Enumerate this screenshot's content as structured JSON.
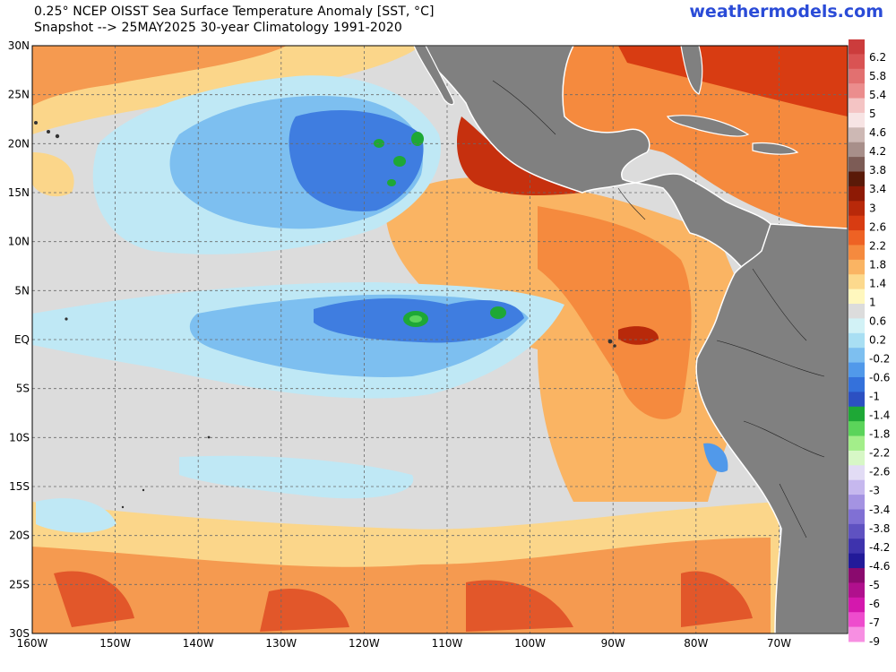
{
  "header": {
    "title_line1": "0.25° NCEP OISST Sea Surface Temperature Anomaly [SST, °C]",
    "title_line2": "Snapshot --> 25MAY2025   30-year Climatology 1991-2020",
    "brand": "weathermodels.com"
  },
  "map": {
    "region": "Eastern Tropical Pacific",
    "lat_labels": [
      "30N",
      "25N",
      "20N",
      "15N",
      "10N",
      "5N",
      "EQ",
      "5S",
      "10S",
      "15S",
      "20S",
      "25S",
      "30S"
    ],
    "lon_labels": [
      "160W",
      "150W",
      "140W",
      "130W",
      "120W",
      "110W",
      "100W",
      "90W",
      "80W",
      "70W"
    ],
    "land_color": "#808080",
    "neutral_ocean_color": "#dcdcdc"
  },
  "colorbar": {
    "labels": [
      "6.2",
      "5.8",
      "5.4",
      "5",
      "4.6",
      "4.2",
      "3.8",
      "3.4",
      "3",
      "2.6",
      "2.2",
      "1.8",
      "1.4",
      "1",
      "0.6",
      "0.2",
      "-0.2",
      "-0.6",
      "-1",
      "-1.4",
      "-1.8",
      "-2.2",
      "-2.6",
      "-3",
      "-3.4",
      "-3.8",
      "-4.2",
      "-4.6",
      "-5",
      "-6",
      "-7",
      "-9"
    ],
    "colors": [
      "#cc3c3c",
      "#d95353",
      "#e27070",
      "#eb8d8d",
      "#f4c4c4",
      "#f7e4e4",
      "#cdb8b4",
      "#a88f8a",
      "#7d5c56",
      "#5a1a08",
      "#8e1a05",
      "#b8290a",
      "#d83c12",
      "#ee6224",
      "#f58a3e",
      "#fab463",
      "#fcd98d",
      "#fff7be",
      "#dcdcdc",
      "#d2f2f6",
      "#a9dff3",
      "#7dbff0",
      "#5199ea",
      "#3471db",
      "#2c50c2",
      "#1ea836",
      "#5bd45a",
      "#a3ee8a",
      "#d7f7c6",
      "#e2dcf5",
      "#c6b8ee",
      "#a493e2",
      "#8070d4",
      "#5f52c1",
      "#3e33ad",
      "#221a99",
      "#8a0a6e",
      "#b0108d",
      "#d418ad",
      "#ee4ccd",
      "#f78fe2"
    ]
  }
}
